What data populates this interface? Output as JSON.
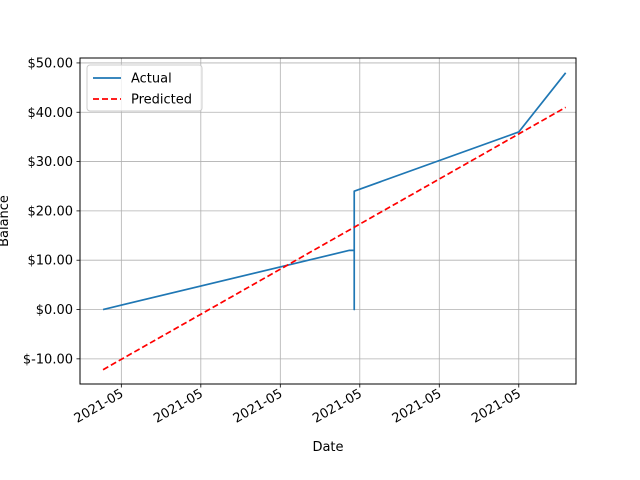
{
  "chart_data": {
    "type": "line",
    "title": "",
    "xlabel": "Date",
    "ylabel": "Balance",
    "x_ticks": [
      {
        "value": 0.4,
        "label": "2021-05"
      },
      {
        "value": 1.4,
        "label": "2021-05"
      },
      {
        "value": 2.4,
        "label": "2021-05"
      },
      {
        "value": 3.4,
        "label": "2021-05"
      },
      {
        "value": 4.4,
        "label": "2021-05"
      },
      {
        "value": 5.4,
        "label": "2021-05"
      }
    ],
    "y_ticks": [
      {
        "value": -10,
        "label": "$-10.00"
      },
      {
        "value": 0,
        "label": "$0.00"
      },
      {
        "value": 10,
        "label": "$10.00"
      },
      {
        "value": 20,
        "label": "$20.00"
      },
      {
        "value": 30,
        "label": "$30.00"
      },
      {
        "value": 40,
        "label": "$40.00"
      },
      {
        "value": 50,
        "label": "$50.00"
      }
    ],
    "xlim": [
      -0.12,
      6.12
    ],
    "ylim": [
      -15.1,
      51.0
    ],
    "grid": true,
    "legend_position": "top-left",
    "series": [
      {
        "name": "Actual",
        "color": "#1f77b4",
        "style": "solid",
        "x": [
          0.17,
          3.27,
          3.33,
          3.33,
          3.33,
          3.33,
          5.4,
          5.99
        ],
        "y": [
          0,
          12,
          12,
          0,
          24,
          24,
          36,
          48
        ]
      },
      {
        "name": "Predicted",
        "color": "#ff0000",
        "style": "dashed",
        "x": [
          0.17,
          5.99
        ],
        "y": [
          -12.2,
          41
        ]
      }
    ]
  }
}
